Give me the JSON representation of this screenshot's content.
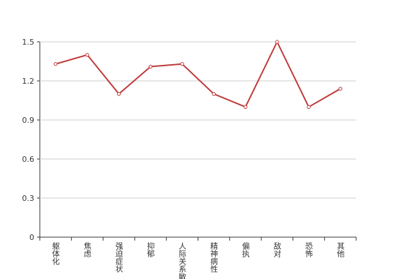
{
  "chart_data": {
    "type": "line",
    "categories": [
      "躯体化",
      "焦虑",
      "强迫症状",
      "抑郁",
      "人际关系敏感",
      "精神病性",
      "偏执",
      "敌对",
      "恐怖",
      "其他"
    ],
    "series": [
      {
        "color": "#c0393a",
        "values": [
          1.33,
          1.4,
          1.1,
          1.31,
          1.33,
          1.1,
          1.0,
          1.5,
          1.0,
          1.14
        ]
      }
    ],
    "ylim": [
      0,
      1.5
    ],
    "yticks": [
      0,
      0.3,
      0.6,
      0.9,
      1.2,
      1.5
    ],
    "grid": true
  }
}
